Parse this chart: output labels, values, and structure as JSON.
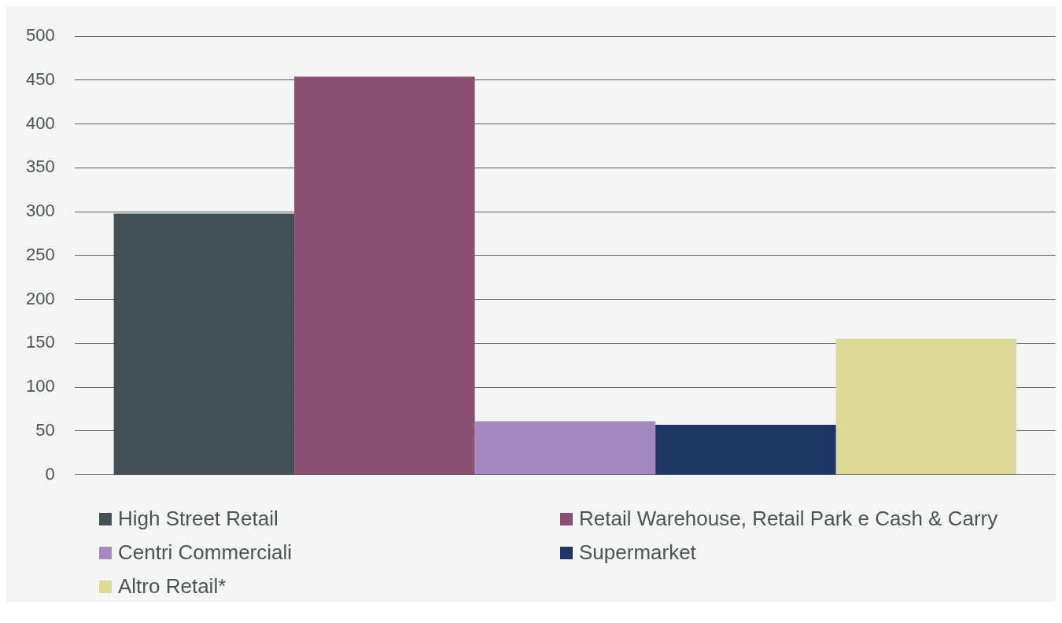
{
  "chart_data": {
    "type": "bar",
    "categories": [
      null
    ],
    "series": [
      {
        "name": "High Street Retail",
        "color": "#435154",
        "values": [
          298
        ]
      },
      {
        "name": "Retail Warehouse, Retail Park e Cash & Carry",
        "color": "#8a5071",
        "values": [
          454
        ]
      },
      {
        "name": "Centri Commerciali",
        "color": "#a488c0",
        "values": [
          61
        ]
      },
      {
        "name": "Supermarket",
        "color": "#1f3664",
        "values": [
          57
        ]
      },
      {
        "name": "Altro Retail*",
        "color": "#dcd898",
        "values": [
          155
        ]
      }
    ],
    "ylim": [
      0,
      500
    ],
    "yticks": [
      0,
      50,
      100,
      150,
      200,
      250,
      300,
      350,
      400,
      450,
      500
    ],
    "grid": "y",
    "legend": "bottom"
  }
}
